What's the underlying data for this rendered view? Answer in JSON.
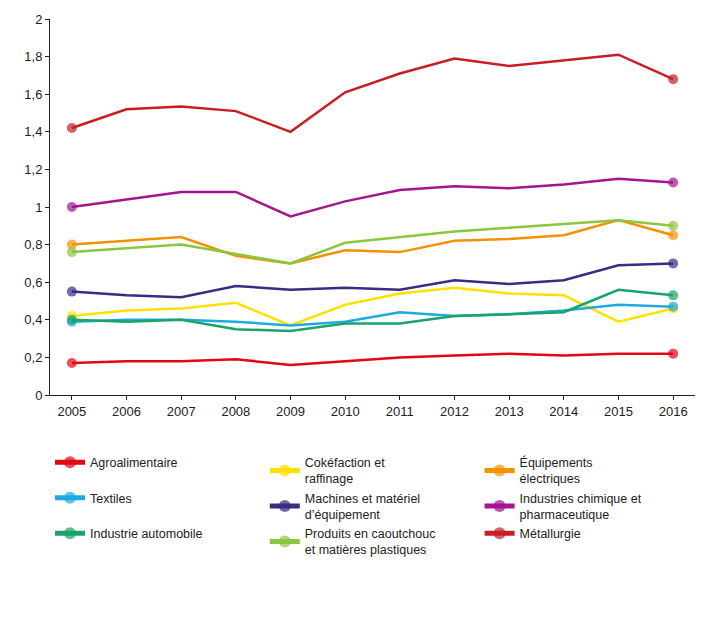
{
  "chart_data": {
    "type": "line",
    "x": [
      2005,
      2006,
      2007,
      2008,
      2009,
      2010,
      2011,
      2012,
      2013,
      2014,
      2015,
      2016
    ],
    "xlim": [
      2004.6,
      2016.4
    ],
    "xticks": [
      2005,
      2006,
      2007,
      2008,
      2009,
      2010,
      2011,
      2012,
      2013,
      2014,
      2015,
      2016
    ],
    "ylim": [
      0,
      2
    ],
    "yticks": [
      0,
      {
        "value": 0.2,
        "label": "0,2"
      },
      {
        "value": 0.4,
        "label": "0,4"
      },
      {
        "value": 0.6,
        "label": "0,6"
      },
      {
        "value": 0.8,
        "label": "0,8"
      },
      1,
      {
        "value": 1.2,
        "label": "1,2"
      },
      {
        "value": 1.4,
        "label": "1,4"
      },
      {
        "value": 1.6,
        "label": "1,6"
      },
      {
        "value": 1.8,
        "label": "1,8"
      },
      2
    ],
    "grid": false,
    "legend": "bottom",
    "marker": "circle",
    "series": [
      {
        "name": "Agroalimentaire",
        "color": "#e30613",
        "values": [
          0.17,
          0.18,
          0.18,
          0.19,
          0.16,
          0.18,
          0.2,
          0.21,
          0.22,
          0.21,
          0.22,
          0.22
        ]
      },
      {
        "name": "Cokéfaction et raffinage",
        "color": "#ffe100",
        "values": [
          0.42,
          0.45,
          0.46,
          0.49,
          0.37,
          0.48,
          0.54,
          0.57,
          0.54,
          0.53,
          0.39,
          0.46
        ]
      },
      {
        "name": "Équipements électriques",
        "color": "#f39200",
        "values": [
          0.8,
          0.82,
          0.84,
          0.74,
          0.7,
          0.77,
          0.76,
          0.82,
          0.83,
          0.85,
          0.93,
          0.85
        ]
      },
      {
        "name": "Textiles",
        "color": "#1fa9e1",
        "values": [
          0.39,
          0.4,
          0.4,
          0.39,
          0.37,
          0.39,
          0.44,
          0.42,
          0.43,
          0.45,
          0.48,
          0.47
        ]
      },
      {
        "name": "Machines et matériel d’équipement",
        "color": "#3c2a84",
        "values": [
          0.55,
          0.53,
          0.52,
          0.58,
          0.56,
          0.57,
          0.56,
          0.61,
          0.59,
          0.61,
          0.69,
          0.7
        ]
      },
      {
        "name": "Industries chimique et pharmaceutique",
        "color": "#a3168f",
        "values": [
          1.0,
          1.04,
          1.08,
          1.08,
          0.95,
          1.03,
          1.09,
          1.11,
          1.1,
          1.12,
          1.15,
          1.13
        ]
      },
      {
        "name": "Industrie automobile",
        "color": "#1aa36a",
        "values": [
          0.4,
          0.39,
          0.4,
          0.35,
          0.34,
          0.38,
          0.38,
          0.42,
          0.43,
          0.44,
          0.56,
          0.53
        ]
      },
      {
        "name": "Produits en caoutchouc et matières plastiques",
        "color": "#8cc63f",
        "values": [
          0.76,
          0.78,
          0.8,
          0.75,
          0.7,
          0.81,
          0.84,
          0.87,
          0.89,
          0.91,
          0.93,
          0.9
        ]
      },
      {
        "name": "Métallurgie",
        "color": "#c81d25",
        "values": [
          1.42,
          1.52,
          1.535,
          1.51,
          1.4,
          1.61,
          1.71,
          1.79,
          1.75,
          1.78,
          1.81,
          1.68
        ]
      }
    ]
  }
}
